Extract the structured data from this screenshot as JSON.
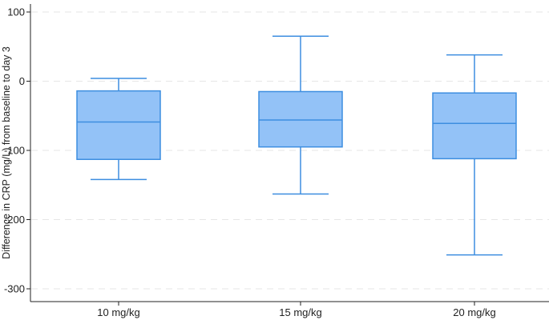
{
  "chart_data": {
    "type": "box",
    "title": "",
    "xlabel": "",
    "ylabel": "Difference in CRP (mg/L) from baseline to day 3",
    "ylim": [
      -310,
      108
    ],
    "yticks": [
      100,
      0,
      -100,
      -200,
      -300
    ],
    "ytick_labels": [
      "100",
      "0",
      "-100",
      "-200",
      "-300"
    ],
    "grid": true,
    "colors": {
      "box_fill": "#93c2f7",
      "box_stroke": "#3d8ee0",
      "axis": "#222222",
      "grid": "#e6e6e6"
    },
    "categories": [
      "10 mg/kg",
      "15 mg/kg",
      "20 mg/kg"
    ],
    "boxes": [
      {
        "whisker_low": -142,
        "q1": -113,
        "median": -59,
        "q3": -14,
        "whisker_high": 4
      },
      {
        "whisker_low": -163,
        "q1": -95,
        "median": -56,
        "q3": -15,
        "whisker_high": 65
      },
      {
        "whisker_low": -251,
        "q1": -112,
        "median": -61,
        "q3": -17,
        "whisker_high": 38
      }
    ]
  }
}
